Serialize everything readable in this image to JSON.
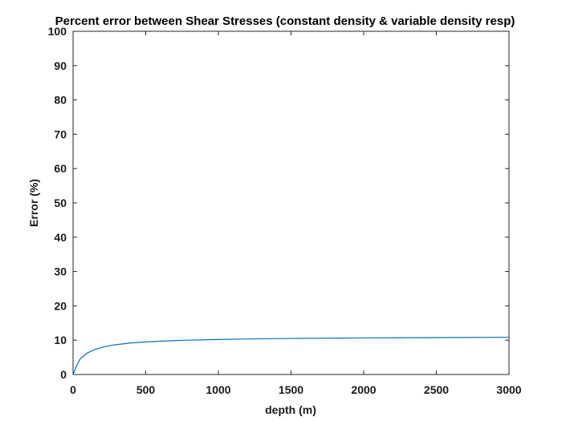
{
  "chart_data": {
    "type": "line",
    "title": "Percent error between Shear Stresses (constant density & variable density resp)",
    "xlabel": "depth (m)",
    "ylabel": "Error (%)",
    "xlim": [
      0,
      3000
    ],
    "ylim": [
      0,
      100
    ],
    "x_ticks": [
      "0",
      "500",
      "1000",
      "1500",
      "2000",
      "2500",
      "3000"
    ],
    "y_ticks": [
      "0",
      "10",
      "20",
      "30",
      "40",
      "50",
      "60",
      "70",
      "80",
      "90",
      "100"
    ],
    "grid": false,
    "legend": "none",
    "series": [
      {
        "color": "#0072bd",
        "x": [
          0,
          25,
          50,
          75,
          100,
          150,
          200,
          250,
          300,
          400,
          500,
          600,
          700,
          800,
          1000,
          1200,
          1500,
          1800,
          2000,
          2500,
          3000
        ],
        "y": [
          0,
          2.6,
          4.6,
          5.5,
          6.3,
          7.3,
          7.9,
          8.4,
          8.7,
          9.2,
          9.5,
          9.7,
          9.9,
          10.0,
          10.2,
          10.35,
          10.5,
          10.6,
          10.65,
          10.75,
          10.85
        ]
      }
    ]
  },
  "colors": {
    "axes": "#262626",
    "line": "#0072bd",
    "background": "#ffffff"
  }
}
